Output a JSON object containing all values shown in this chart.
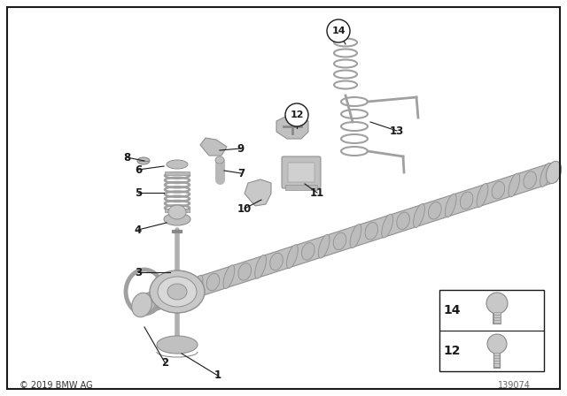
{
  "background_color": "#ffffff",
  "border_color": "#000000",
  "copyright_text": "© 2019 BMW AG",
  "part_number": "139074",
  "fig_width": 6.4,
  "fig_height": 4.48,
  "dpi": 100,
  "gray1": "#c8c8c8",
  "gray2": "#b0b0b0",
  "gray3": "#989898",
  "line_color": "#1a1a1a",
  "label_font_size": 8.5,
  "circled_labels": [
    "12",
    "14"
  ]
}
